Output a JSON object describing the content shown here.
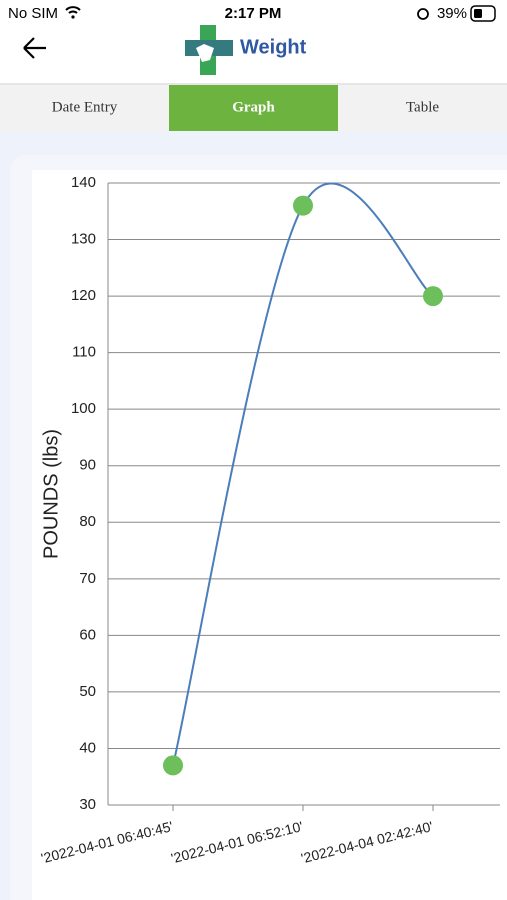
{
  "status_bar": {
    "carrier": "No SIM",
    "time": "2:17 PM",
    "battery": "39%"
  },
  "header": {
    "title": "Weight"
  },
  "tabs": [
    {
      "label": "Date Entry",
      "active": false
    },
    {
      "label": "Graph",
      "active": true
    },
    {
      "label": "Table",
      "active": false
    }
  ],
  "chart_data": {
    "type": "line",
    "y_label": "POUNDS (lbs)",
    "categories": [
      "'2022-04-01 06:40:45'",
      "'2022-04-01 06:52:10'",
      "'2022-04-04 02:42:40'"
    ],
    "values": [
      37,
      136,
      120
    ],
    "color": "#4a7ebb",
    "marker_color": "#6cbf5a",
    "ylim": [
      30,
      140
    ],
    "yticks": [
      30,
      40,
      50,
      60,
      70,
      80,
      90,
      100,
      110,
      120,
      130,
      140
    ],
    "grid": true
  }
}
